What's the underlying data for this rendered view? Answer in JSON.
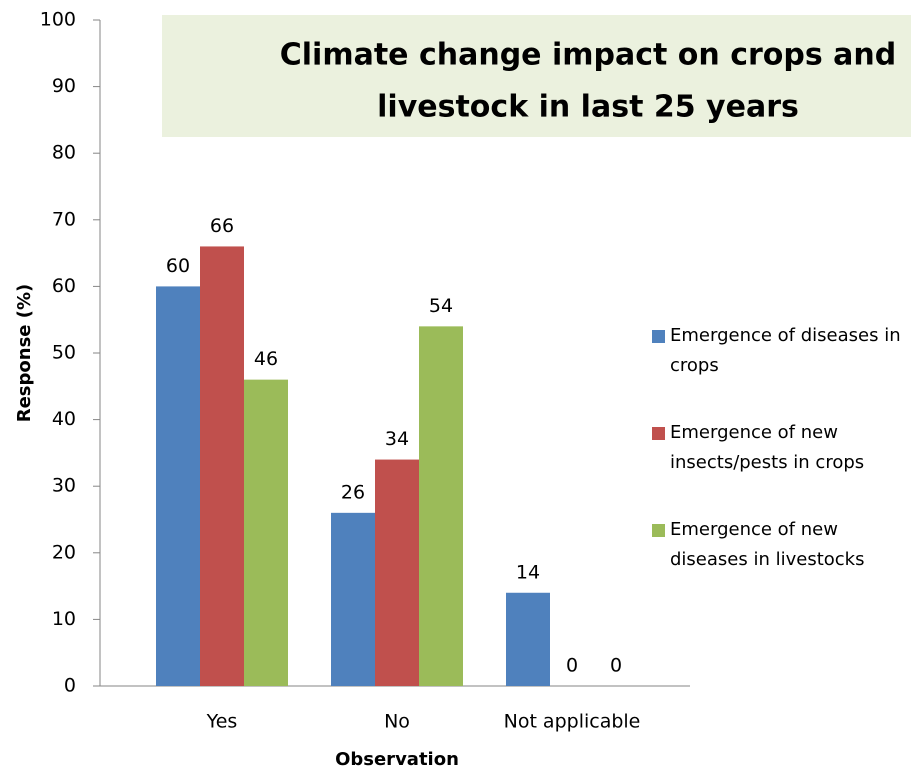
{
  "chart_data": {
    "type": "bar",
    "title": [
      "Climate change impact on crops and",
      "livestock in last 25 years"
    ],
    "x_label": "Observation",
    "y_label": "Response (%)",
    "categories": [
      "Yes",
      "No",
      "Not applicable"
    ],
    "series": [
      {
        "name": "Emergence of diseases in crops",
        "color": "#4f81bd",
        "values": [
          60,
          26,
          14
        ]
      },
      {
        "name": "Emergence of new insects/pests in crops",
        "color": "#c0504d",
        "values": [
          66,
          34,
          0
        ]
      },
      {
        "name": "Emergence of new diseases in livestocks",
        "color": "#9bbb59",
        "values": [
          46,
          54,
          0
        ]
      }
    ],
    "ylim": [
      0,
      100
    ],
    "yticks": [
      0,
      10,
      20,
      30,
      40,
      50,
      60,
      70,
      80,
      90,
      100
    ],
    "legend": "right",
    "data_labels": true
  }
}
